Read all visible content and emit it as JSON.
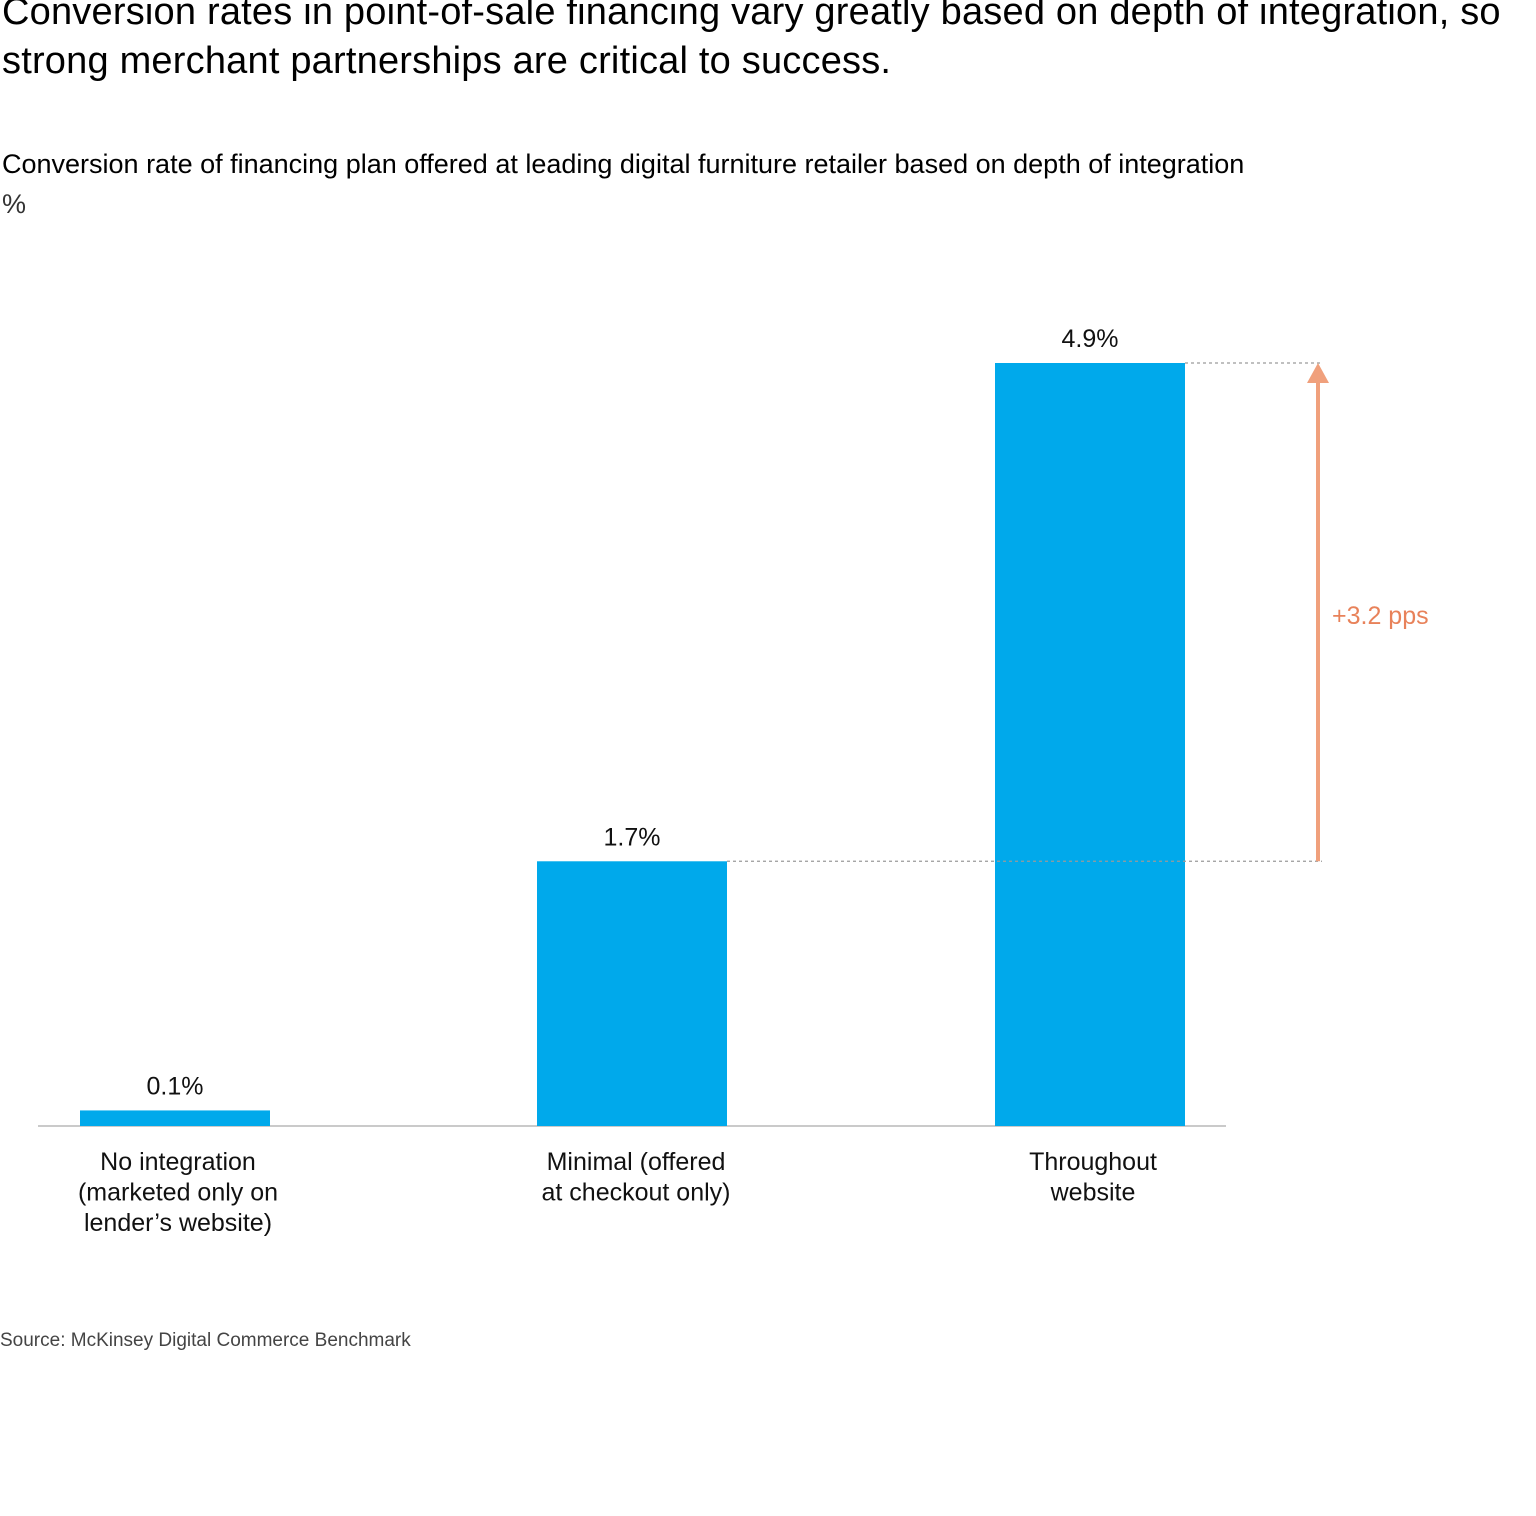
{
  "header": {
    "title": "Conversion rates in point-of-sale financing vary greatly based on depth of integration, so strong merchant partnerships are critical to success.",
    "subtitle": "Conversion rate of financing plan offered at leading digital furniture retailer based on depth of integration",
    "unit": "%"
  },
  "chart_data": {
    "type": "bar",
    "categories": [
      [
        "No integration",
        "(marketed only on",
        "lender’s website)"
      ],
      [
        "Minimal (offered",
        "at checkout only)"
      ],
      [
        "Throughout",
        "website"
      ]
    ],
    "values": [
      0.1,
      1.7,
      4.9
    ],
    "data_labels": [
      "0.1%",
      "1.7%",
      "4.9%"
    ],
    "ylim": [
      0,
      4.9
    ],
    "grid": false,
    "bar_color": "#00a9eb",
    "annotation": {
      "label": "+3.2 pps",
      "from_value": 1.7,
      "to_value": 4.9,
      "color": "#f0a07c"
    }
  },
  "footer": {
    "source": "Source: McKinsey Digital Commerce Benchmark"
  }
}
